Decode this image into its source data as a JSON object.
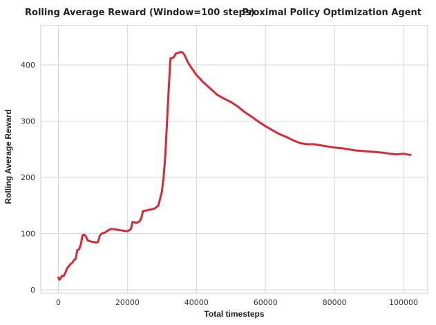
{
  "chart_data": {
    "type": "line",
    "title": "Rolling Average Reward (Window=100 steps)",
    "subtitle": "Proximal Policy Optimization Agent",
    "xlabel": "Total timesteps",
    "ylabel": "Rolling Average Reward",
    "xlim": [
      -5100,
      107000
    ],
    "ylim": [
      -6,
      470
    ],
    "xticks": [
      0,
      20000,
      40000,
      60000,
      80000,
      100000
    ],
    "xtick_labels": [
      "0",
      "20000",
      "40000",
      "60000",
      "80000",
      "100000"
    ],
    "yticks": [
      0,
      100,
      200,
      300,
      400
    ],
    "ytick_labels": [
      "0",
      "100",
      "200",
      "300",
      "400"
    ],
    "grid": true,
    "legend": "none",
    "line_color": "#d62a35",
    "series": [
      {
        "x": [
          0,
          300,
          600,
          1000,
          1500,
          2000,
          2500,
          3000,
          3500,
          4000,
          4500,
          5000,
          5500,
          6000,
          6500,
          7000,
          7500,
          8000,
          8500,
          9000,
          9500,
          10000,
          10500,
          11000,
          11500,
          12000,
          12500,
          13000,
          13500,
          14000,
          15000,
          16000,
          17000,
          18000,
          19000,
          20000,
          21000,
          21500,
          22000,
          22500,
          23000,
          23500,
          24000,
          24500,
          25000,
          25500,
          26000,
          27000,
          28000,
          29000,
          30000,
          30500,
          31000,
          31500,
          32000,
          32500,
          33000,
          33500,
          34000,
          34500,
          35000,
          35500,
          36000,
          36500,
          37000,
          37500,
          38000,
          39000,
          40000,
          42000,
          44000,
          46000,
          48000,
          50000,
          52000,
          54000,
          56000,
          58000,
          60000,
          62000,
          64000,
          66000,
          68000,
          70000,
          72000,
          74000,
          76000,
          78000,
          80000,
          82000,
          84000,
          86000,
          88000,
          90000,
          92000,
          94000,
          96000,
          98000,
          100000,
          101000,
          102000
        ],
        "y": [
          22,
          18,
          20,
          25,
          24,
          30,
          38,
          42,
          46,
          48,
          53,
          55,
          71,
          72,
          80,
          97,
          98,
          95,
          88,
          87,
          86,
          85,
          85,
          84,
          85,
          96,
          100,
          101,
          102,
          104,
          108,
          108,
          107,
          106,
          105,
          104,
          108,
          121,
          120,
          119,
          120,
          122,
          127,
          140,
          141,
          141,
          142,
          143,
          145,
          150,
          175,
          200,
          240,
          300,
          360,
          412,
          412,
          414,
          420,
          421,
          422,
          423,
          422,
          418,
          412,
          405,
          400,
          391,
          382,
          369,
          358,
          347,
          340,
          334,
          326,
          316,
          308,
          299,
          291,
          284,
          277,
          272,
          266,
          261,
          259,
          259,
          257,
          255,
          253,
          252,
          250,
          248,
          247,
          246,
          245,
          244,
          242,
          241,
          242,
          241,
          240
        ]
      }
    ]
  }
}
